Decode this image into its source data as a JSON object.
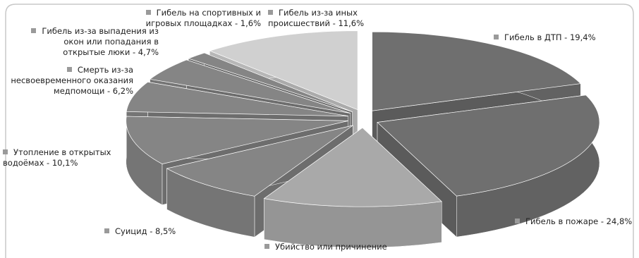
{
  "chart_data": {
    "type": "pie3d",
    "categories": [
      "Гибель в ДТП - 19,4%",
      "Гибель в пожаре - 24,8%",
      "Убийство или причинение",
      "Суицид - 8,5%",
      "Утопление в открытых водоёмах - 10,1%",
      "Смерть из-за несвоевременного оказания медпомощи - 6,2%",
      "Гибель из-за выпадения из окон или попадания в открытые люки - 4,7%",
      "Гибель на спортивных и игровых площадках - 1,6%",
      "Гибель из-за иных происшествий - 11,6%"
    ],
    "values": [
      19.4,
      24.8,
      13.1,
      8.5,
      10.1,
      6.2,
      4.7,
      1.6,
      11.6
    ],
    "colors": [
      "#6f6f6f",
      "#6f6f6f",
      "#a9a9a9",
      "#858585",
      "#858585",
      "#858585",
      "#858585",
      "#858585",
      "#d0d0d0"
    ]
  }
}
